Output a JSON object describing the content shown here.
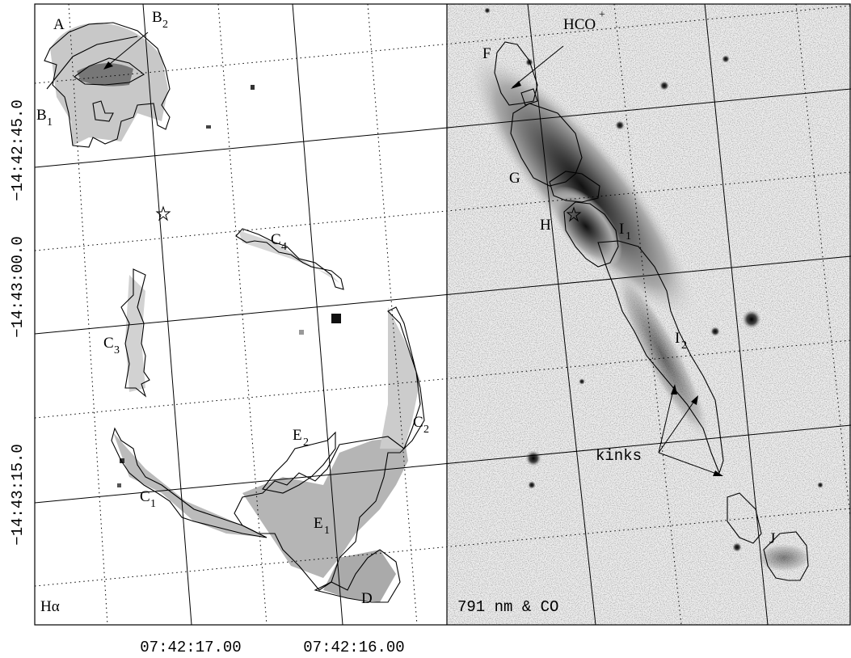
{
  "panels": [
    {
      "caption": "Hα",
      "labels": [
        {
          "text": "A"
        },
        {
          "text": "B",
          "sub": "2"
        },
        {
          "text": "B",
          "sub": "1"
        },
        {
          "text": "C",
          "sub": "4"
        },
        {
          "text": "C",
          "sub": "3"
        },
        {
          "text": "E",
          "sub": "2"
        },
        {
          "text": "C",
          "sub": "2"
        },
        {
          "text": "C",
          "sub": "1"
        },
        {
          "text": "E",
          "sub": "1"
        },
        {
          "text": "D"
        }
      ]
    },
    {
      "caption": "791 nm & CO",
      "labels": [
        {
          "text": "F"
        },
        {
          "text": "G"
        },
        {
          "text": "H"
        },
        {
          "text": "I",
          "sub": "1"
        },
        {
          "text": "I",
          "sub": "2"
        },
        {
          "text": "J"
        },
        {
          "text": "HCO",
          "sup": "+"
        },
        {
          "text": "kinks"
        }
      ]
    }
  ],
  "y_axis": {
    "ticks": [
      "−14:42:45.0",
      "−14:43:00.0",
      "−14:43:15.0"
    ]
  },
  "x_axis": {
    "ticks": [
      "07:42:17.00",
      "07:42:16.00"
    ]
  }
}
